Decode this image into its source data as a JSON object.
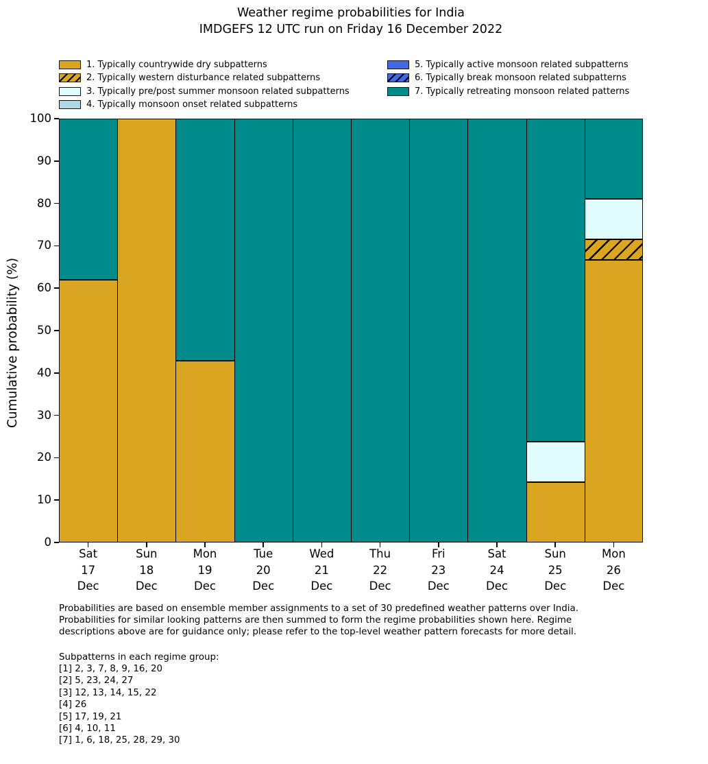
{
  "title": {
    "line1": "Weather regime probabilities for India",
    "line2": "IMDGEFS 12 UTC run on Friday 16 December 2022"
  },
  "y_axis": {
    "label": "Cumulative probability (%)",
    "ticks": [
      0,
      10,
      20,
      30,
      40,
      50,
      60,
      70,
      80,
      90,
      100
    ]
  },
  "legend": {
    "columns": [
      [
        0,
        1,
        2,
        3
      ],
      [
        4,
        5,
        6
      ]
    ]
  },
  "chart_data": {
    "type": "bar",
    "stacked": true,
    "title": "Weather regime probabilities for India",
    "subtitle": "IMDGEFS 12 UTC run on Friday 16 December 2022",
    "xlabel": "",
    "ylabel": "Cumulative probability (%)",
    "ylim": [
      0,
      100
    ],
    "yticks": [
      0,
      10,
      20,
      30,
      40,
      50,
      60,
      70,
      80,
      90,
      100
    ],
    "grid": false,
    "legend_position": "above plot, two columns",
    "bar_edge_color": "#000000",
    "categories": [
      [
        "Sat",
        "17",
        "Dec"
      ],
      [
        "Sun",
        "18",
        "Dec"
      ],
      [
        "Mon",
        "19",
        "Dec"
      ],
      [
        "Tue",
        "20",
        "Dec"
      ],
      [
        "Wed",
        "21",
        "Dec"
      ],
      [
        "Thu",
        "22",
        "Dec"
      ],
      [
        "Fri",
        "23",
        "Dec"
      ],
      [
        "Sat",
        "24",
        "Dec"
      ],
      [
        "Sun",
        "25",
        "Dec"
      ],
      [
        "Mon",
        "26",
        "Dec"
      ]
    ],
    "series": [
      {
        "name": "1. Typically countrywide dry subpatterns",
        "color": "#DAA520",
        "hatch": false,
        "values": [
          61.9,
          100,
          42.9,
          0,
          0,
          0,
          0,
          0,
          14.3,
          66.7
        ]
      },
      {
        "name": "2. Typically western disturbance related subpatterns",
        "color": "#DAA520",
        "hatch": true,
        "values": [
          0,
          0,
          0,
          0,
          0,
          0,
          0,
          0,
          0,
          4.8
        ]
      },
      {
        "name": "3. Typically pre/post summer monsoon related subpatterns",
        "color": "#E0FCFC",
        "hatch": false,
        "values": [
          0,
          0,
          0,
          0,
          0,
          0,
          0,
          0,
          9.5,
          9.5
        ]
      },
      {
        "name": "4. Typically monsoon onset related subpatterns",
        "color": "#ADD8E6",
        "hatch": false,
        "values": [
          0,
          0,
          0,
          0,
          0,
          0,
          0,
          0,
          0,
          0
        ]
      },
      {
        "name": "5. Typically active monsoon related subpatterns",
        "color": "#4169E1",
        "hatch": false,
        "values": [
          0,
          0,
          0,
          0,
          0,
          0,
          0,
          0,
          0,
          0
        ]
      },
      {
        "name": "6. Typically break monsoon related subpatterns",
        "color": "#4169E1",
        "hatch": true,
        "values": [
          0,
          0,
          0,
          0,
          0,
          0,
          0,
          0,
          0,
          0
        ]
      },
      {
        "name": "7. Typically retreating monsoon related patterns",
        "color": "#008B8B",
        "hatch": false,
        "values": [
          38.1,
          0,
          57.1,
          100,
          100,
          100,
          100,
          100,
          76.2,
          19.0
        ]
      }
    ]
  },
  "footer": {
    "note_lines": [
      "Probabilities are based on ensemble member assignments to a set of 30 predefined weather patterns over India.",
      "Probabilities for similar looking patterns are then summed to form the regime probabilities shown here. Regime",
      "descriptions above are for guidance only; please refer to the top-level weather pattern forecasts for more detail."
    ],
    "subpatterns_title": "Subpatterns in each regime group:",
    "subpatterns": [
      "[1] 2, 3, 7, 8, 9, 16, 20",
      "[2] 5, 23, 24, 27",
      "[3] 12, 13, 14, 15, 22",
      "[4] 26",
      "[5] 17, 19, 21",
      "[6] 4, 10, 11",
      "[7] 1, 6, 18, 25, 28, 29, 30"
    ]
  }
}
